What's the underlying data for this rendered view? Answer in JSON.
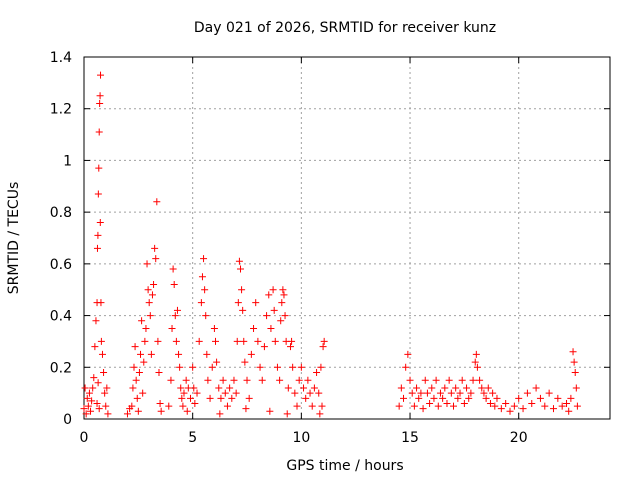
{
  "chart_data": {
    "type": "scatter",
    "title": "Day 021 of 2026, SRMTID for receiver kunz",
    "xlabel": "GPS time / hours",
    "ylabel": "SRMTID / TECUs",
    "xlim": [
      0,
      24.2
    ],
    "ylim": [
      0,
      1.4
    ],
    "grid": true,
    "x_ticks": [
      {
        "value": 0,
        "label": "0"
      },
      {
        "value": 5,
        "label": "5"
      },
      {
        "value": 10,
        "label": "10"
      },
      {
        "value": 15,
        "label": "15"
      },
      {
        "value": 20,
        "label": "20"
      }
    ],
    "y_ticks": [
      {
        "value": 0,
        "label": "0"
      },
      {
        "value": 0.2,
        "label": "0.2"
      },
      {
        "value": 0.4,
        "label": "0.4"
      },
      {
        "value": 0.6,
        "label": "0.6"
      },
      {
        "value": 0.8,
        "label": "0.8"
      },
      {
        "value": 1.0,
        "label": "1"
      },
      {
        "value": 1.2,
        "label": "1.2"
      },
      {
        "value": 1.4,
        "label": "1.4"
      }
    ],
    "marker": "+",
    "color": "#ff0000",
    "series": [
      {
        "name": "SRMTID",
        "points": [
          [
            0.0,
            0.04
          ],
          [
            0.05,
            0.12
          ],
          [
            0.1,
            0.02
          ],
          [
            0.15,
            0.08
          ],
          [
            0.2,
            0.05
          ],
          [
            0.25,
            0.1
          ],
          [
            0.3,
            0.03
          ],
          [
            0.35,
            0.07
          ],
          [
            0.4,
            0.12
          ],
          [
            0.45,
            0.16
          ],
          [
            0.5,
            0.28
          ],
          [
            0.55,
            0.38
          ],
          [
            0.6,
            0.45
          ],
          [
            0.62,
            0.66
          ],
          [
            0.64,
            0.71
          ],
          [
            0.66,
            0.87
          ],
          [
            0.68,
            0.97
          ],
          [
            0.7,
            1.11
          ],
          [
            0.72,
            1.22
          ],
          [
            0.74,
            1.25
          ],
          [
            0.76,
            1.33
          ],
          [
            0.6,
            0.06
          ],
          [
            0.65,
            0.14
          ],
          [
            0.7,
            0.04
          ],
          [
            0.75,
            0.76
          ],
          [
            0.78,
            0.45
          ],
          [
            0.8,
            0.3
          ],
          [
            0.85,
            0.25
          ],
          [
            0.9,
            0.18
          ],
          [
            0.95,
            0.1
          ],
          [
            1.0,
            0.05
          ],
          [
            1.05,
            0.12
          ],
          [
            1.1,
            0.02
          ],
          [
            2.2,
            0.05
          ],
          [
            2.25,
            0.12
          ],
          [
            2.3,
            0.2
          ],
          [
            2.35,
            0.28
          ],
          [
            2.4,
            0.15
          ],
          [
            2.45,
            0.08
          ],
          [
            2.5,
            0.03
          ],
          [
            2.55,
            0.18
          ],
          [
            2.6,
            0.25
          ],
          [
            2.65,
            0.38
          ],
          [
            2.7,
            0.1
          ],
          [
            2.75,
            0.22
          ],
          [
            2.8,
            0.3
          ],
          [
            2.85,
            0.35
          ],
          [
            2.9,
            0.6
          ],
          [
            2.95,
            0.5
          ],
          [
            3.0,
            0.45
          ],
          [
            3.05,
            0.4
          ],
          [
            3.1,
            0.25
          ],
          [
            3.15,
            0.48
          ],
          [
            3.2,
            0.52
          ],
          [
            3.25,
            0.66
          ],
          [
            3.3,
            0.62
          ],
          [
            3.35,
            0.84
          ],
          [
            3.4,
            0.3
          ],
          [
            3.45,
            0.18
          ],
          [
            3.5,
            0.06
          ],
          [
            3.55,
            0.03
          ],
          [
            2.0,
            0.02
          ],
          [
            2.1,
            0.04
          ],
          [
            3.9,
            0.05
          ],
          [
            4.0,
            0.15
          ],
          [
            4.05,
            0.35
          ],
          [
            4.1,
            0.58
          ],
          [
            4.15,
            0.52
          ],
          [
            4.2,
            0.4
          ],
          [
            4.25,
            0.3
          ],
          [
            4.3,
            0.42
          ],
          [
            4.35,
            0.25
          ],
          [
            4.4,
            0.2
          ],
          [
            4.45,
            0.12
          ],
          [
            4.5,
            0.08
          ],
          [
            4.55,
            0.05
          ],
          [
            4.6,
            0.1
          ],
          [
            4.7,
            0.15
          ],
          [
            4.8,
            0.12
          ],
          [
            4.9,
            0.08
          ],
          [
            5.0,
            0.2
          ],
          [
            5.05,
            0.12
          ],
          [
            5.1,
            0.06
          ],
          [
            5.2,
            0.1
          ],
          [
            5.3,
            0.3
          ],
          [
            5.4,
            0.45
          ],
          [
            5.45,
            0.55
          ],
          [
            5.5,
            0.62
          ],
          [
            5.55,
            0.5
          ],
          [
            5.6,
            0.4
          ],
          [
            5.65,
            0.25
          ],
          [
            5.7,
            0.15
          ],
          [
            5.8,
            0.08
          ],
          [
            5.9,
            0.2
          ],
          [
            6.0,
            0.35
          ],
          [
            6.05,
            0.3
          ],
          [
            6.1,
            0.22
          ],
          [
            6.2,
            0.12
          ],
          [
            6.3,
            0.08
          ],
          [
            6.4,
            0.15
          ],
          [
            6.5,
            0.1
          ],
          [
            6.6,
            0.05
          ],
          [
            6.7,
            0.12
          ],
          [
            6.8,
            0.08
          ],
          [
            6.9,
            0.15
          ],
          [
            7.0,
            0.1
          ],
          [
            7.05,
            0.3
          ],
          [
            7.1,
            0.45
          ],
          [
            7.15,
            0.61
          ],
          [
            7.2,
            0.58
          ],
          [
            7.25,
            0.5
          ],
          [
            7.3,
            0.42
          ],
          [
            7.35,
            0.3
          ],
          [
            7.4,
            0.22
          ],
          [
            7.5,
            0.15
          ],
          [
            7.6,
            0.08
          ],
          [
            7.7,
            0.25
          ],
          [
            7.8,
            0.35
          ],
          [
            7.9,
            0.45
          ],
          [
            8.0,
            0.3
          ],
          [
            8.1,
            0.2
          ],
          [
            8.2,
            0.15
          ],
          [
            8.3,
            0.28
          ],
          [
            8.4,
            0.4
          ],
          [
            8.5,
            0.48
          ],
          [
            8.6,
            0.35
          ],
          [
            8.7,
            0.5
          ],
          [
            8.75,
            0.42
          ],
          [
            8.8,
            0.3
          ],
          [
            8.9,
            0.2
          ],
          [
            9.0,
            0.15
          ],
          [
            9.05,
            0.38
          ],
          [
            9.1,
            0.45
          ],
          [
            9.15,
            0.5
          ],
          [
            9.2,
            0.48
          ],
          [
            9.25,
            0.4
          ],
          [
            9.3,
            0.3
          ],
          [
            9.4,
            0.12
          ],
          [
            9.5,
            0.28
          ],
          [
            9.55,
            0.3
          ],
          [
            9.6,
            0.2
          ],
          [
            9.7,
            0.1
          ],
          [
            9.8,
            0.05
          ],
          [
            9.9,
            0.15
          ],
          [
            10.0,
            0.2
          ],
          [
            10.1,
            0.12
          ],
          [
            10.2,
            0.08
          ],
          [
            10.3,
            0.15
          ],
          [
            10.4,
            0.1
          ],
          [
            10.5,
            0.05
          ],
          [
            10.6,
            0.12
          ],
          [
            10.7,
            0.18
          ],
          [
            10.8,
            0.1
          ],
          [
            10.9,
            0.2
          ],
          [
            11.0,
            0.28
          ],
          [
            11.05,
            0.3
          ],
          [
            10.95,
            0.05
          ],
          [
            10.85,
            0.02
          ],
          [
            9.35,
            0.02
          ],
          [
            8.55,
            0.03
          ],
          [
            7.45,
            0.04
          ],
          [
            6.25,
            0.02
          ],
          [
            4.75,
            0.03
          ],
          [
            14.5,
            0.05
          ],
          [
            14.6,
            0.12
          ],
          [
            14.7,
            0.08
          ],
          [
            14.8,
            0.2
          ],
          [
            14.9,
            0.25
          ],
          [
            15.0,
            0.15
          ],
          [
            15.1,
            0.1
          ],
          [
            15.2,
            0.05
          ],
          [
            15.3,
            0.12
          ],
          [
            15.4,
            0.08
          ],
          [
            15.5,
            0.1
          ],
          [
            15.6,
            0.04
          ],
          [
            15.7,
            0.15
          ],
          [
            15.8,
            0.1
          ],
          [
            15.9,
            0.06
          ],
          [
            16.0,
            0.12
          ],
          [
            16.1,
            0.08
          ],
          [
            16.2,
            0.15
          ],
          [
            16.3,
            0.05
          ],
          [
            16.4,
            0.1
          ],
          [
            16.5,
            0.08
          ],
          [
            16.6,
            0.12
          ],
          [
            16.7,
            0.06
          ],
          [
            16.8,
            0.15
          ],
          [
            16.9,
            0.1
          ],
          [
            17.0,
            0.05
          ],
          [
            17.1,
            0.12
          ],
          [
            17.2,
            0.08
          ],
          [
            17.3,
            0.1
          ],
          [
            17.4,
            0.15
          ],
          [
            17.5,
            0.06
          ],
          [
            17.6,
            0.12
          ],
          [
            17.7,
            0.08
          ],
          [
            17.8,
            0.1
          ],
          [
            17.9,
            0.15
          ],
          [
            18.0,
            0.22
          ],
          [
            18.05,
            0.25
          ],
          [
            18.1,
            0.2
          ],
          [
            18.2,
            0.15
          ],
          [
            18.3,
            0.12
          ],
          [
            18.4,
            0.1
          ],
          [
            18.5,
            0.08
          ],
          [
            18.6,
            0.12
          ],
          [
            18.7,
            0.06
          ],
          [
            18.8,
            0.1
          ],
          [
            18.9,
            0.05
          ],
          [
            19.0,
            0.08
          ],
          [
            19.2,
            0.04
          ],
          [
            19.4,
            0.06
          ],
          [
            19.6,
            0.03
          ],
          [
            19.8,
            0.05
          ],
          [
            20.0,
            0.08
          ],
          [
            20.2,
            0.04
          ],
          [
            20.4,
            0.1
          ],
          [
            20.6,
            0.06
          ],
          [
            20.8,
            0.12
          ],
          [
            21.0,
            0.08
          ],
          [
            21.2,
            0.05
          ],
          [
            21.4,
            0.1
          ],
          [
            21.6,
            0.04
          ],
          [
            21.8,
            0.08
          ],
          [
            22.0,
            0.05
          ],
          [
            22.2,
            0.06
          ],
          [
            22.4,
            0.08
          ],
          [
            22.5,
            0.26
          ],
          [
            22.55,
            0.22
          ],
          [
            22.6,
            0.18
          ],
          [
            22.65,
            0.12
          ],
          [
            22.7,
            0.05
          ],
          [
            22.3,
            0.03
          ]
        ]
      }
    ]
  }
}
